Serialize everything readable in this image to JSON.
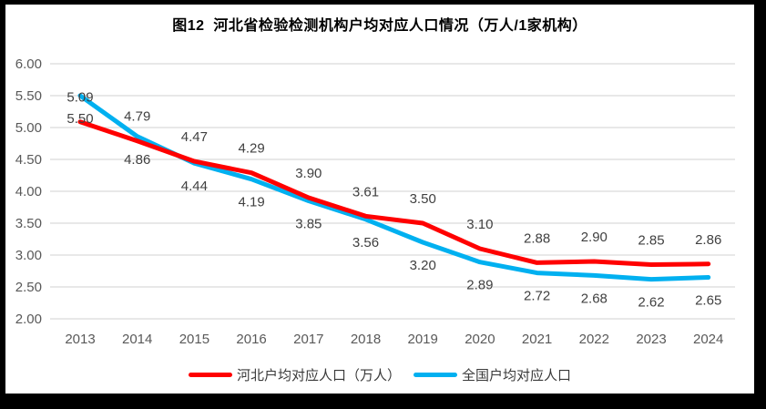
{
  "chart_data": {
    "type": "line",
    "title": "图12  河北省检验检测机构户均对应人口情况（万人/1家机构）",
    "categories": [
      "2013",
      "2014",
      "2015",
      "2016",
      "2017",
      "2018",
      "2019",
      "2020",
      "2021",
      "2022",
      "2023",
      "2024"
    ],
    "series": [
      {
        "name": "河北户均对应人口（万人）",
        "key": "hebei",
        "color": "#ff0000",
        "label_position": "above",
        "values": [
          5.09,
          4.79,
          4.47,
          4.29,
          3.9,
          3.61,
          3.5,
          3.1,
          2.88,
          2.9,
          2.85,
          2.86
        ]
      },
      {
        "name": "全国户均对应人口",
        "key": "national",
        "color": "#00b0f0",
        "label_position": "below",
        "values": [
          5.5,
          4.86,
          4.44,
          4.19,
          3.85,
          3.56,
          3.2,
          2.89,
          2.72,
          2.68,
          2.62,
          2.65
        ]
      }
    ],
    "xlabel": "",
    "ylabel": "",
    "ylim": [
      2.0,
      6.0
    ],
    "y_ticks": [
      "6.00",
      "5.50",
      "5.00",
      "4.50",
      "4.00",
      "3.50",
      "3.00",
      "2.50",
      "2.00"
    ],
    "grid": true,
    "legend_position": "bottom",
    "colors": {
      "gridline": "#d9d9d9",
      "tick_label": "#595959",
      "data_label": "#404040",
      "title": "#000000",
      "background": "#ffffff",
      "frame": "#000000"
    }
  }
}
